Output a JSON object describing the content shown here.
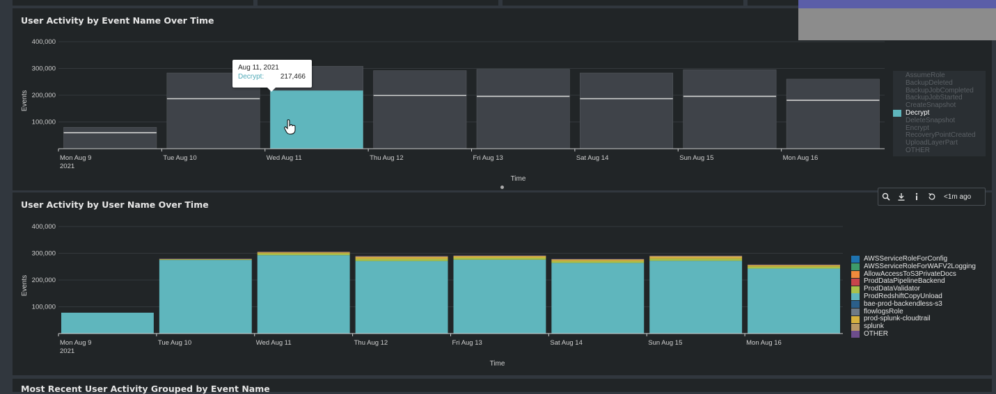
{
  "panels": {
    "event_chart": {
      "title": "User Activity by Event Name Over Time"
    },
    "user_chart": {
      "title": "User Activity by User Name Over Time"
    },
    "recent_activity": {
      "title": "Most Recent User Activity Grouped by Event Name"
    }
  },
  "tooltip": {
    "date": "Aug 11, 2021",
    "series": "Decrypt:",
    "value": "217,466"
  },
  "toolbar": {
    "icons": [
      "search-icon",
      "download-icon",
      "info-icon",
      "refresh-icon"
    ],
    "age": "<1m ago"
  },
  "colors": {
    "panel_bg": "#212527",
    "page_bg": "#31373e",
    "highlight": "#5fb6bd",
    "dim_bar": "#3f4349"
  },
  "chart_data": [
    {
      "type": "bar",
      "title": "User Activity by Event Name Over Time",
      "xlabel": "Time",
      "ylabel": "Events",
      "ylim": [
        0,
        400000
      ],
      "yticks": [
        "400,000",
        "300,000",
        "200,000",
        "100,000"
      ],
      "categories": [
        "Mon Aug 9",
        "Tue Aug 10",
        "Wed Aug 11",
        "Thu Aug 12",
        "Fri Aug 13",
        "Sat Aug 14",
        "Sun Aug 15",
        "Mon Aug 16"
      ],
      "category_year": "2021",
      "stacked": true,
      "highlighted_series": "Decrypt",
      "totals": [
        80000,
        283000,
        308000,
        292000,
        297000,
        283000,
        295000,
        260000
      ],
      "series": [
        {
          "name": "Decrypt",
          "values": [
            60000,
            187000,
            217466,
            199000,
            196000,
            187000,
            196000,
            181000
          ]
        }
      ],
      "legend": {
        "position": "right",
        "items": [
          "AssumeRole",
          "BackupDeleted",
          "BackupJobCompleted",
          "BackupJobStarted",
          "CreateSnapshot",
          "Decrypt",
          "DeleteSnapshot",
          "Encrypt",
          "RecoveryPointCreated",
          "UploadLayerPart",
          "OTHER"
        ]
      }
    },
    {
      "type": "bar",
      "title": "User Activity by User Name Over Time",
      "xlabel": "Time",
      "ylabel": "Events",
      "ylim": [
        0,
        400000
      ],
      "yticks": [
        "400,000",
        "300,000",
        "200,000",
        "100,000"
      ],
      "categories": [
        "Mon Aug 9",
        "Tue Aug 10",
        "Wed Aug 11",
        "Thu Aug 12",
        "Fri Aug 13",
        "Sat Aug 14",
        "Sun Aug 15",
        "Mon Aug 16"
      ],
      "category_year": "2021",
      "stacked": true,
      "series": [
        {
          "name": "ProdRedshiftCopyUnload",
          "color": "#5fb6bd",
          "values": [
            78000,
            275000,
            293000,
            271000,
            276000,
            264000,
            272000,
            243000
          ]
        },
        {
          "name": "ProdDataValidator",
          "color": "#a9c14a",
          "values": [
            0,
            2000,
            6000,
            8000,
            7000,
            6000,
            8000,
            7000
          ]
        },
        {
          "name": "prod-splunk-cloudtrail",
          "color": "#d6b13f",
          "values": [
            0,
            1000,
            4000,
            7000,
            6000,
            5000,
            7000,
            5000
          ]
        },
        {
          "name": "splunk",
          "color": "#b89866",
          "values": [
            0,
            1000,
            2000,
            3000,
            2000,
            3000,
            3000,
            2000
          ]
        },
        {
          "name": "OTHER",
          "color": "#6d4d8c",
          "values": [
            0,
            1000,
            1000,
            1000,
            1000,
            1000,
            1000,
            1000
          ]
        }
      ],
      "legend": {
        "position": "right",
        "items": [
          {
            "label": "AWSServiceRoleForConfig",
            "color": "#1e73b0"
          },
          {
            "label": "AWSServiceRoleForWAFV2Logging",
            "color": "#3e9a6a"
          },
          {
            "label": "AllowAccessToS3PrivateDocs",
            "color": "#ef8a3c"
          },
          {
            "label": "ProdDataPipelineBackend",
            "color": "#c8444b"
          },
          {
            "label": "ProdDataValidator",
            "color": "#a9c14a"
          },
          {
            "label": "ProdRedshiftCopyUnload",
            "color": "#5fb6bd"
          },
          {
            "label": "bae-prod-backendless-s3",
            "color": "#2b5f8a"
          },
          {
            "label": "flowlogsRole",
            "color": "#6e7a86"
          },
          {
            "label": "prod-splunk-cloudtrail",
            "color": "#d6b13f"
          },
          {
            "label": "splunk",
            "color": "#b89866"
          },
          {
            "label": "OTHER",
            "color": "#6d4d8c"
          }
        ]
      }
    }
  ]
}
